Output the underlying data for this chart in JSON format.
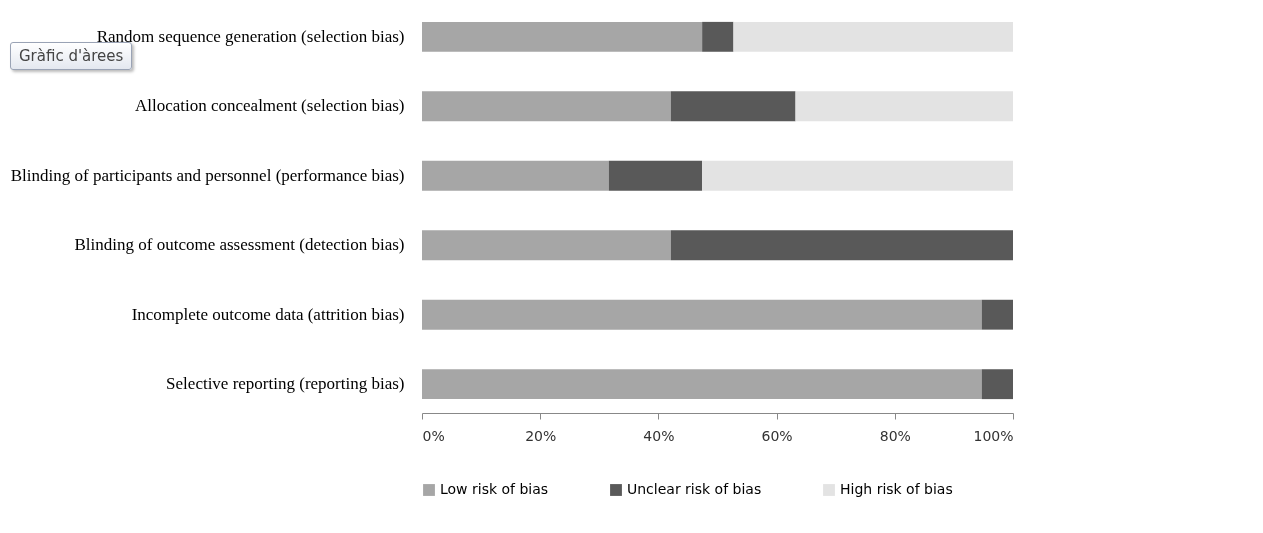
{
  "chart_data": {
    "type": "bar",
    "orientation": "horizontal",
    "stacked": true,
    "categories": [
      "Random sequence generation (selection bias)",
      "Allocation concealment (selection bias)",
      "Blinding of participants and personnel (performance bias)",
      "Blinding of outcome assessment (detection bias)",
      "Incomplete outcome data (attrition bias)",
      "Selective reporting (reporting bias)"
    ],
    "series": [
      {
        "name": "Low risk of bias",
        "color": "#a6a6a6",
        "values": [
          47.4,
          42.1,
          31.6,
          42.1,
          94.7,
          94.7
        ]
      },
      {
        "name": "Unclear risk of bias",
        "color": "#595959",
        "values": [
          5.3,
          21.1,
          15.8,
          57.9,
          5.3,
          5.3
        ]
      },
      {
        "name": "High risk of bias",
        "color": "#e3e3e3",
        "values": [
          47.3,
          36.8,
          52.6,
          0,
          0,
          0
        ]
      }
    ],
    "xlim": [
      0,
      100
    ],
    "xticks": [
      {
        "value": 0,
        "label": "0%"
      },
      {
        "value": 20,
        "label": "20%"
      },
      {
        "value": 40,
        "label": "40%"
      },
      {
        "value": 60,
        "label": "60%"
      },
      {
        "value": 80,
        "label": "80%"
      },
      {
        "value": 100,
        "label": "100%"
      }
    ],
    "grid": false,
    "legend": "bottom",
    "annotations": [
      "Gràfic d'àrees"
    ]
  }
}
